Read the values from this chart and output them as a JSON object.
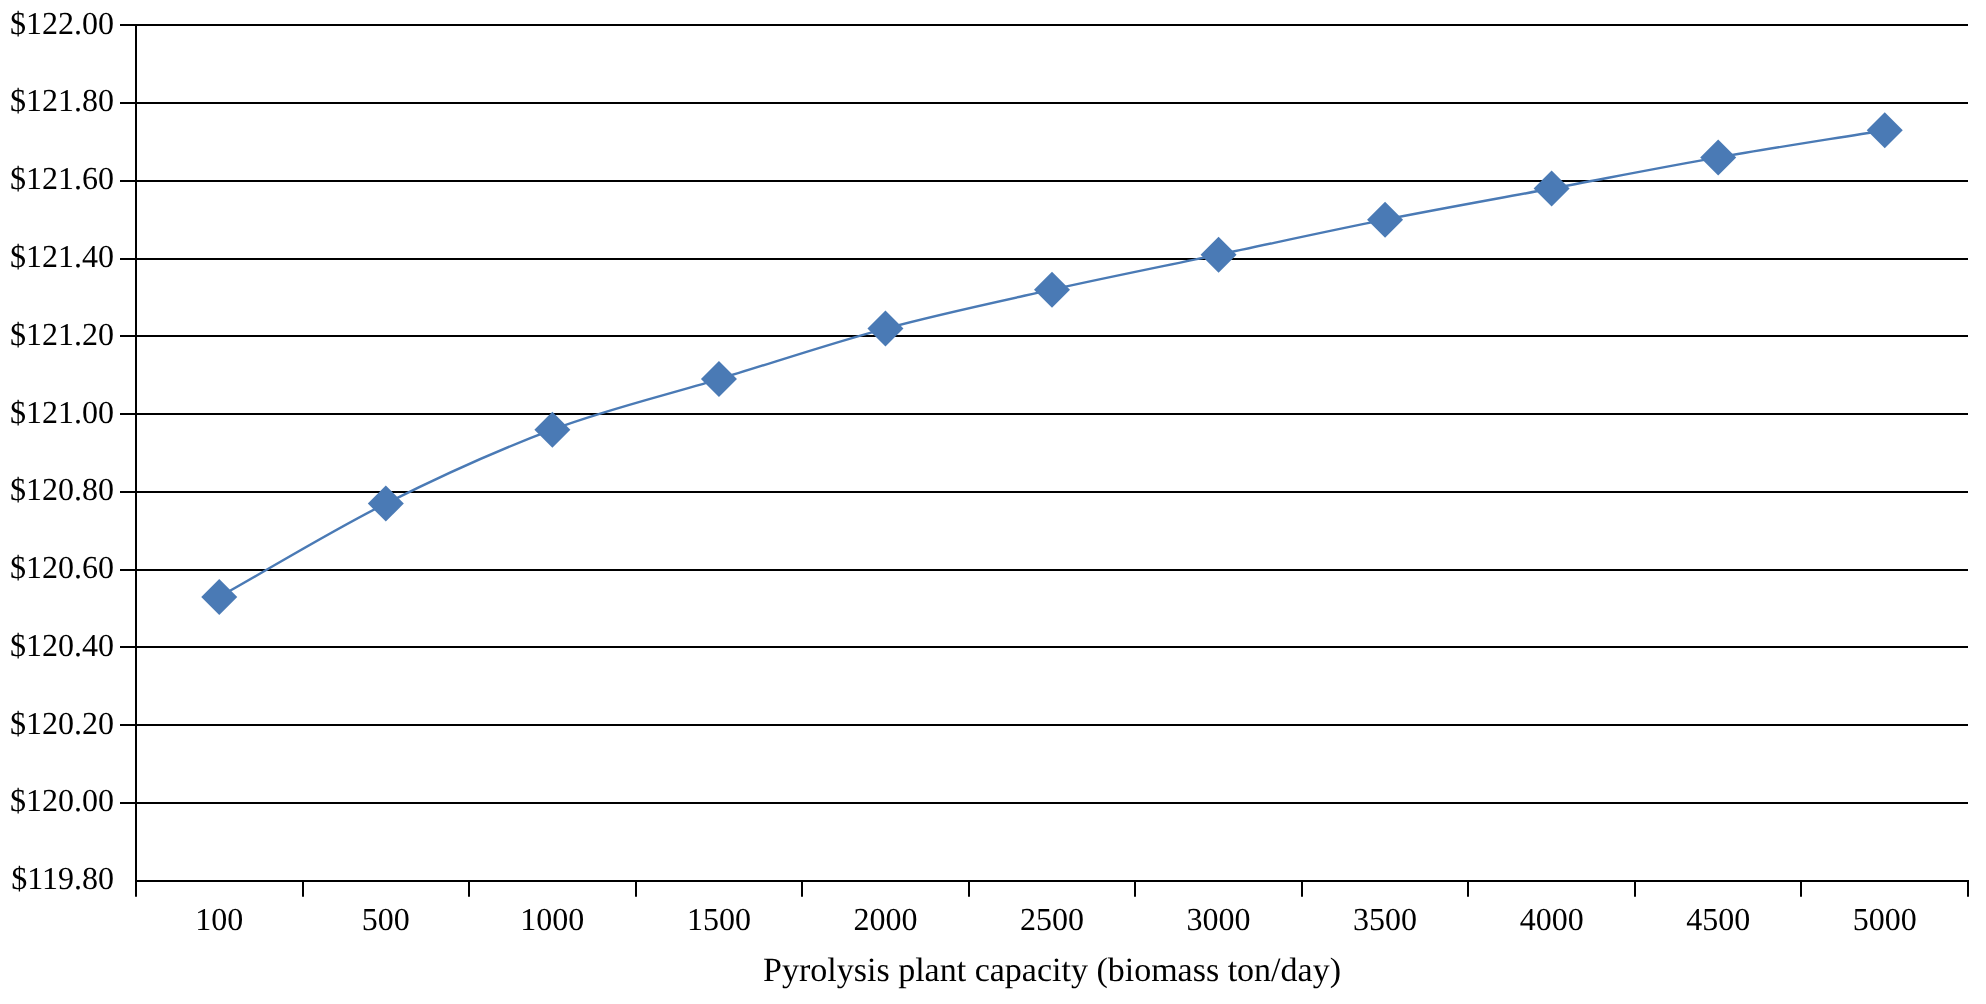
{
  "chart_data": {
    "type": "line",
    "xlabel": "Pyrolysis plant capacity (biomass ton/day)",
    "categories": [
      "100",
      "500",
      "1000",
      "1500",
      "2000",
      "2500",
      "3000",
      "3500",
      "4000",
      "4500",
      "5000"
    ],
    "series": [
      {
        "color": "#4a7ab5",
        "values": [
          120.53,
          120.77,
          120.96,
          121.09,
          121.22,
          121.32,
          121.41,
          121.5,
          121.58,
          121.66,
          121.73
        ]
      }
    ],
    "ylim": [
      119.8,
      122.0
    ],
    "yticks": [
      {
        "value": 119.8,
        "label": "$119.80"
      },
      {
        "value": 120.0,
        "label": "$120.00"
      },
      {
        "value": 120.2,
        "label": "$120.20"
      },
      {
        "value": 120.4,
        "label": "$120.40"
      },
      {
        "value": 120.6,
        "label": "$120.60"
      },
      {
        "value": 120.8,
        "label": "$120.80"
      },
      {
        "value": 121.0,
        "label": "$121.00"
      },
      {
        "value": 121.2,
        "label": "$121.20"
      },
      {
        "value": 121.4,
        "label": "$121.40"
      },
      {
        "value": 121.6,
        "label": "$121.60"
      },
      {
        "value": 121.8,
        "label": "$121.80"
      },
      {
        "value": 122.0,
        "label": "$122.00"
      }
    ],
    "grid": "y",
    "legend": false,
    "marker": "diamond",
    "line_style": "solid"
  }
}
